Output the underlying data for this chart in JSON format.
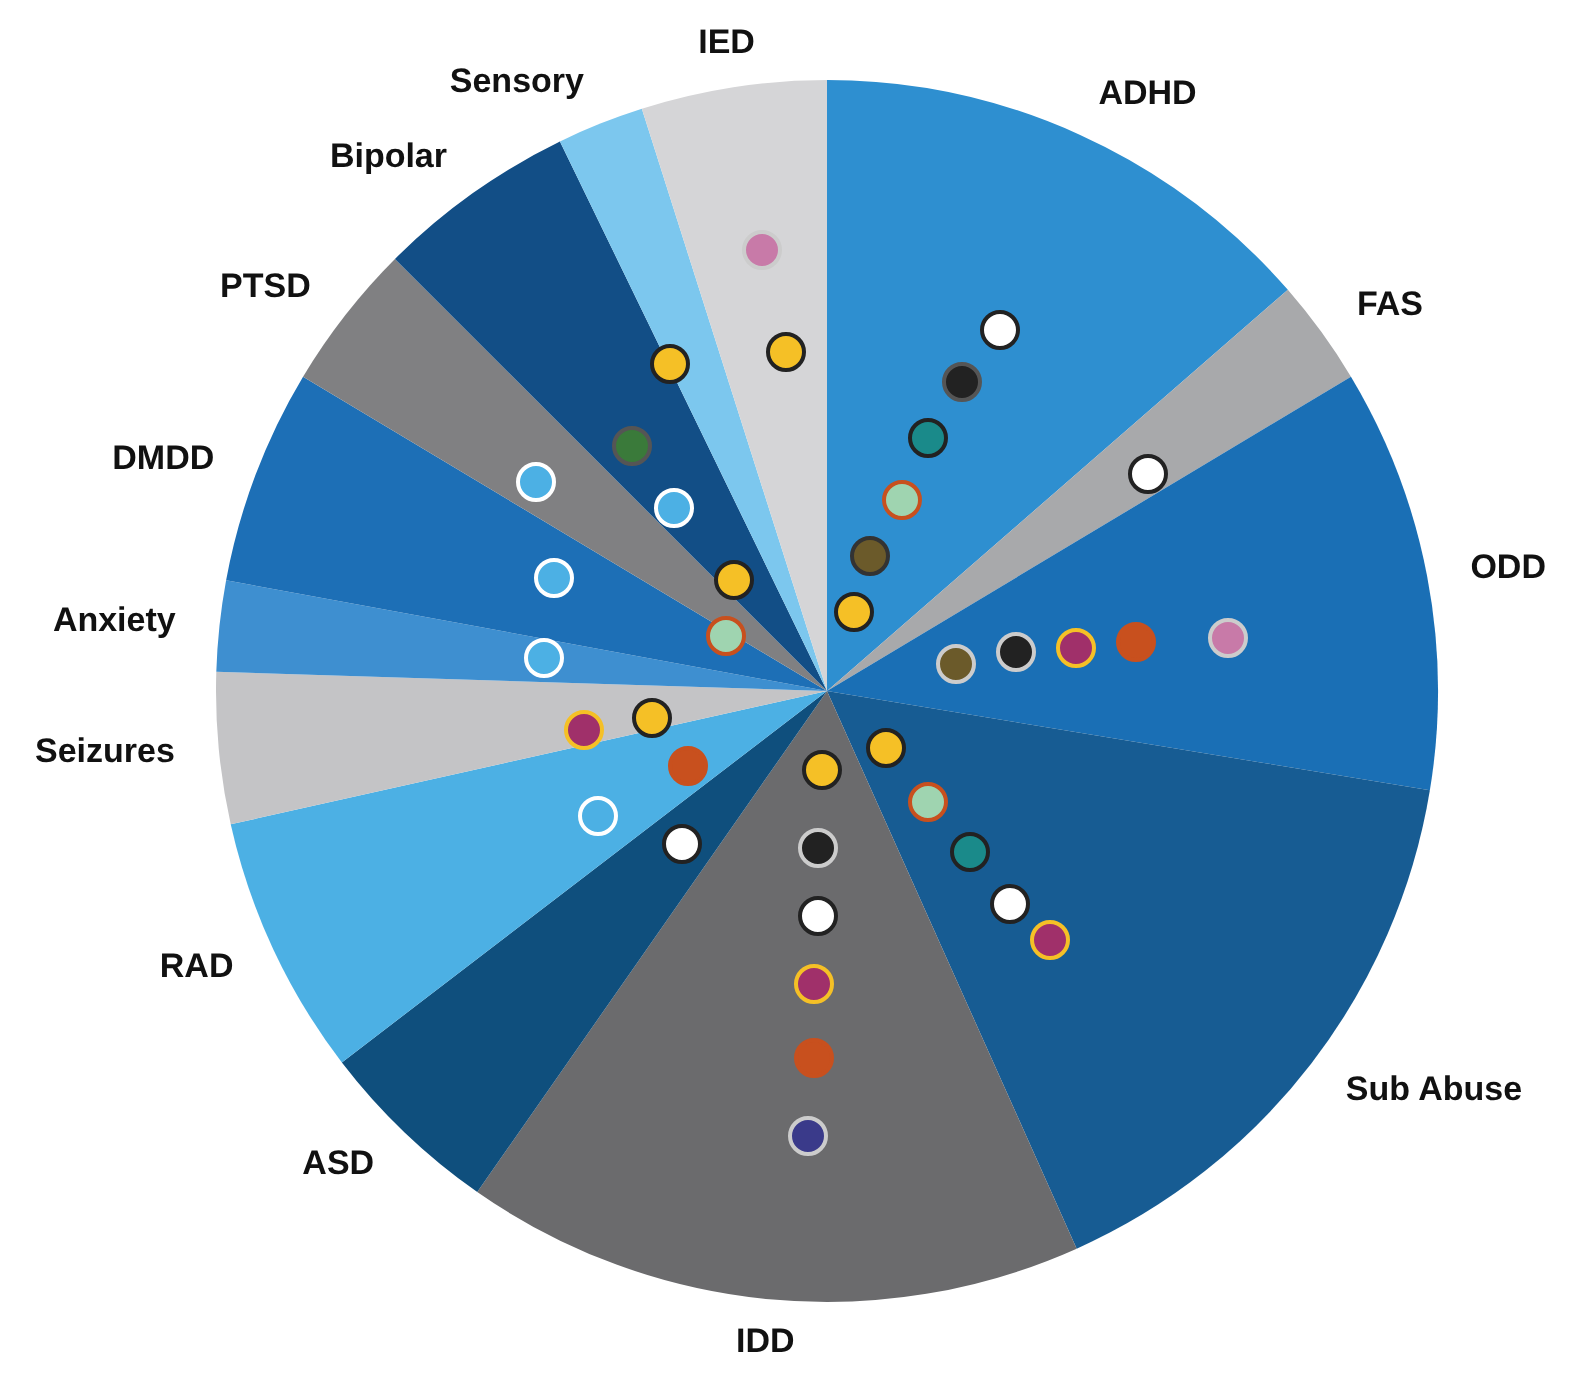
{
  "chart_data": {
    "type": "pie",
    "categories": [
      "ADHD",
      "FAS",
      "ODD",
      "Sub Abuse",
      "IDD",
      "ASD",
      "RAD",
      "Seizures",
      "Anxiety",
      "DMDD",
      "PTSD",
      "Bipolar",
      "Sensory",
      "IED"
    ],
    "values": [
      13.6,
      2.8,
      11.2,
      15.7,
      16.4,
      4.9,
      6.9,
      4.0,
      2.4,
      5.7,
      3.9,
      5.3,
      2.3,
      4.9
    ],
    "colors": [
      "#2e8fd0",
      "#a8a9ab",
      "#1a6fb5",
      "#175c93",
      "#6b6b6d",
      "#0f4f7d",
      "#4cb0e4",
      "#c4c4c6",
      "#3e8fd0",
      "#1d6fb6",
      "#808082",
      "#124e86",
      "#7cc7ee",
      "#d5d5d7"
    ],
    "legend": false
  }
}
